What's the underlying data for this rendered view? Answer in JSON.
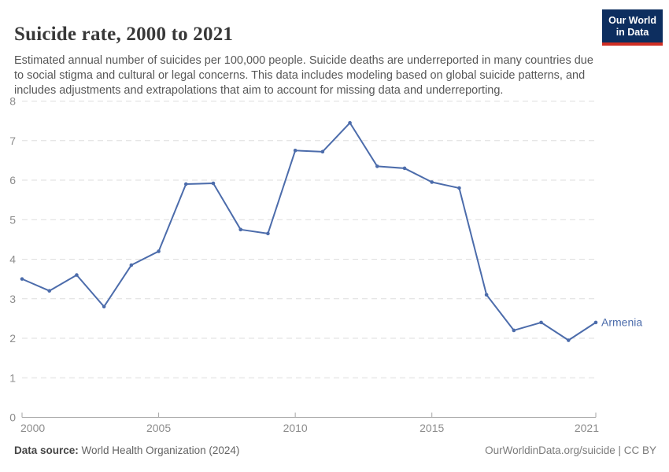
{
  "header": {
    "title": "Suicide rate, 2000 to 2021",
    "subtitle": "Estimated annual number of suicides per 100,000 people. Suicide deaths are underreported in many countries due to social stigma and cultural or legal concerns. This data includes modeling based on global suicide patterns, and includes adjustments and extrapolations that aim to account for missing data and underreporting."
  },
  "logo": {
    "line1": "Our World",
    "line2": "in Data",
    "bg_color": "#0d2e5f",
    "stripe_color": "#cf2e23"
  },
  "chart_data": {
    "type": "line",
    "title": "Suicide rate, 2000 to 2021",
    "x": [
      2000,
      2001,
      2002,
      2003,
      2004,
      2005,
      2006,
      2007,
      2008,
      2009,
      2010,
      2011,
      2012,
      2013,
      2014,
      2015,
      2016,
      2017,
      2018,
      2019,
      2020,
      2021
    ],
    "series": [
      {
        "name": "Armenia",
        "values": [
          3.5,
          3.2,
          3.6,
          2.8,
          3.85,
          4.2,
          5.9,
          5.92,
          4.75,
          4.65,
          6.75,
          6.72,
          7.45,
          6.35,
          6.3,
          5.95,
          5.8,
          3.1,
          2.2,
          2.4,
          1.95,
          2.4
        ]
      }
    ],
    "xlabel": "",
    "ylabel": "",
    "ylim": [
      0,
      8
    ],
    "yticks": [
      0,
      1,
      2,
      3,
      4,
      5,
      6,
      7,
      8
    ],
    "xticks": [
      2000,
      2005,
      2010,
      2015,
      2021
    ],
    "grid": "horizontal-dashed",
    "legend_position": "end-of-line",
    "end_label": "Armenia",
    "line_color": "#4c6cab",
    "grid_color": "#dedede",
    "axis_color": "#a6a6a6",
    "tick_label_color": "#8c8c8c"
  },
  "footer": {
    "source_label": "Data source:",
    "source_value": "World Health Organization (2024)",
    "attribution": "OurWorldinData.org/suicide | CC BY"
  }
}
